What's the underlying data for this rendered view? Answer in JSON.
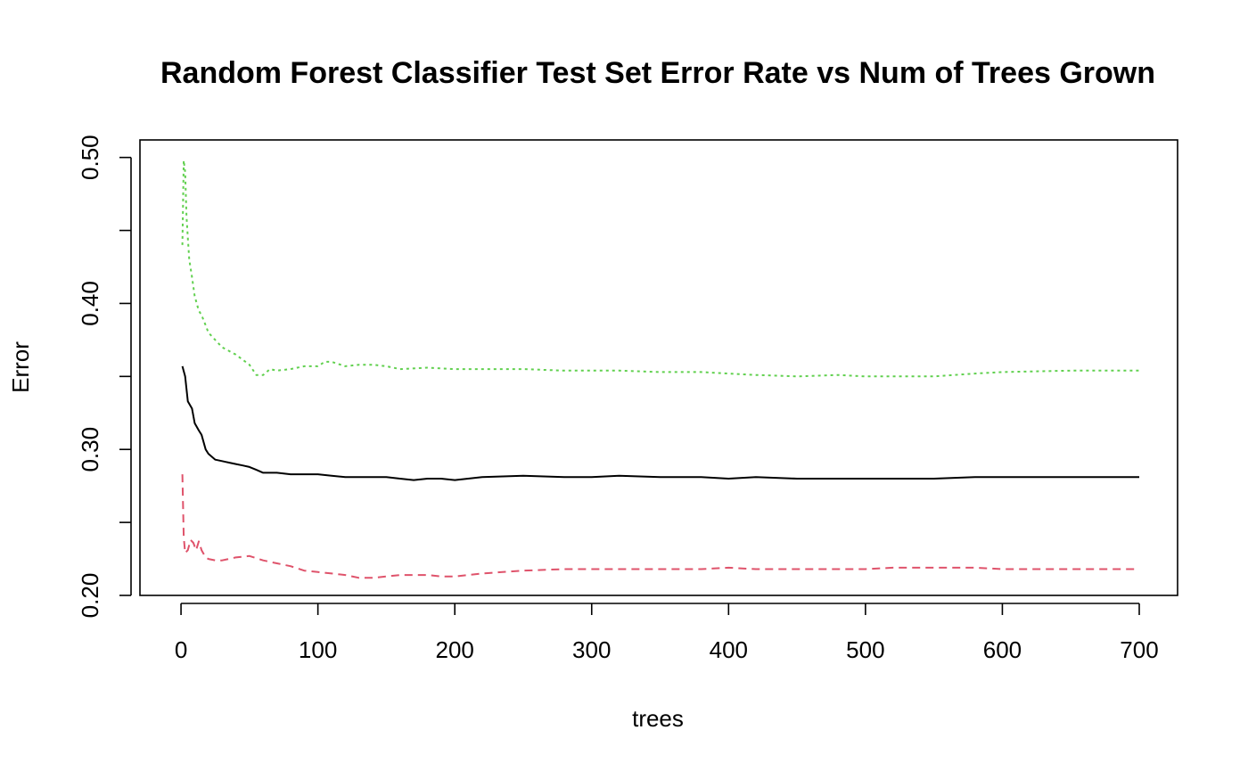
{
  "chart_data": {
    "type": "line",
    "title": "Random Forest Classifier Test Set Error Rate vs Num of Trees Grown",
    "xlabel": "trees",
    "ylabel": "Error",
    "xlim": [
      -30,
      728
    ],
    "ylim": [
      0.2,
      0.512
    ],
    "xticks": [
      "0",
      "100",
      "200",
      "300",
      "400",
      "500",
      "600",
      "700"
    ],
    "xtick_values": [
      0,
      100,
      200,
      300,
      400,
      500,
      600,
      700
    ],
    "yticks": [
      "0.20",
      "0.25",
      "0.30",
      "0.35",
      "0.40",
      "0.45",
      "0.50"
    ],
    "ytick_values": [
      0.2,
      0.25,
      0.3,
      0.35,
      0.4,
      0.45,
      0.5
    ],
    "ytick_labels_shown": [
      "0.20",
      "0.30",
      "0.40",
      "0.50"
    ],
    "grid": false,
    "legend": "none",
    "series": [
      {
        "color": "#000000",
        "dash": "solid",
        "x": [
          1,
          3,
          5,
          8,
          10,
          13,
          15,
          18,
          20,
          25,
          30,
          35,
          40,
          45,
          50,
          55,
          60,
          70,
          80,
          90,
          100,
          110,
          120,
          130,
          140,
          150,
          160,
          170,
          180,
          190,
          200,
          220,
          250,
          280,
          300,
          320,
          350,
          380,
          400,
          420,
          450,
          480,
          500,
          520,
          550,
          580,
          600,
          650,
          700
        ],
        "y": [
          0.357,
          0.35,
          0.333,
          0.328,
          0.318,
          0.313,
          0.31,
          0.3,
          0.297,
          0.293,
          0.292,
          0.291,
          0.29,
          0.289,
          0.288,
          0.286,
          0.284,
          0.284,
          0.283,
          0.283,
          0.283,
          0.282,
          0.281,
          0.281,
          0.281,
          0.281,
          0.28,
          0.279,
          0.28,
          0.28,
          0.279,
          0.281,
          0.282,
          0.281,
          0.281,
          0.282,
          0.281,
          0.281,
          0.28,
          0.281,
          0.28,
          0.28,
          0.28,
          0.28,
          0.28,
          0.281,
          0.281,
          0.281,
          0.281
        ]
      },
      {
        "color": "#DF536B",
        "dash": "dashed",
        "x": [
          1,
          2,
          3,
          5,
          7,
          9,
          11,
          13,
          15,
          18,
          20,
          25,
          30,
          40,
          50,
          60,
          70,
          80,
          90,
          100,
          110,
          120,
          130,
          140,
          150,
          160,
          170,
          180,
          190,
          200,
          220,
          250,
          280,
          300,
          320,
          350,
          380,
          400,
          420,
          450,
          480,
          500,
          520,
          550,
          580,
          600,
          650,
          700
        ],
        "y": [
          0.283,
          0.24,
          0.229,
          0.231,
          0.238,
          0.236,
          0.231,
          0.237,
          0.231,
          0.226,
          0.225,
          0.224,
          0.224,
          0.226,
          0.227,
          0.224,
          0.222,
          0.22,
          0.217,
          0.216,
          0.215,
          0.214,
          0.212,
          0.212,
          0.213,
          0.214,
          0.214,
          0.214,
          0.213,
          0.213,
          0.215,
          0.217,
          0.218,
          0.218,
          0.218,
          0.218,
          0.218,
          0.219,
          0.218,
          0.218,
          0.218,
          0.218,
          0.219,
          0.219,
          0.219,
          0.218,
          0.218,
          0.218
        ]
      },
      {
        "color": "#61D04F",
        "dash": "dotted",
        "x": [
          1,
          2,
          3,
          4,
          5,
          6,
          8,
          10,
          13,
          15,
          18,
          20,
          25,
          30,
          40,
          50,
          55,
          60,
          65,
          70,
          80,
          90,
          100,
          105,
          110,
          120,
          130,
          140,
          150,
          160,
          180,
          200,
          220,
          250,
          280,
          300,
          320,
          350,
          380,
          400,
          420,
          450,
          480,
          500,
          520,
          550,
          580,
          600,
          650,
          700
        ],
        "y": [
          0.44,
          0.498,
          0.49,
          0.46,
          0.445,
          0.43,
          0.418,
          0.405,
          0.395,
          0.392,
          0.385,
          0.38,
          0.375,
          0.37,
          0.365,
          0.358,
          0.351,
          0.351,
          0.355,
          0.354,
          0.355,
          0.357,
          0.357,
          0.36,
          0.36,
          0.357,
          0.358,
          0.358,
          0.357,
          0.355,
          0.356,
          0.355,
          0.355,
          0.355,
          0.354,
          0.354,
          0.354,
          0.353,
          0.353,
          0.352,
          0.351,
          0.35,
          0.351,
          0.35,
          0.35,
          0.35,
          0.352,
          0.353,
          0.354,
          0.354
        ]
      }
    ]
  }
}
